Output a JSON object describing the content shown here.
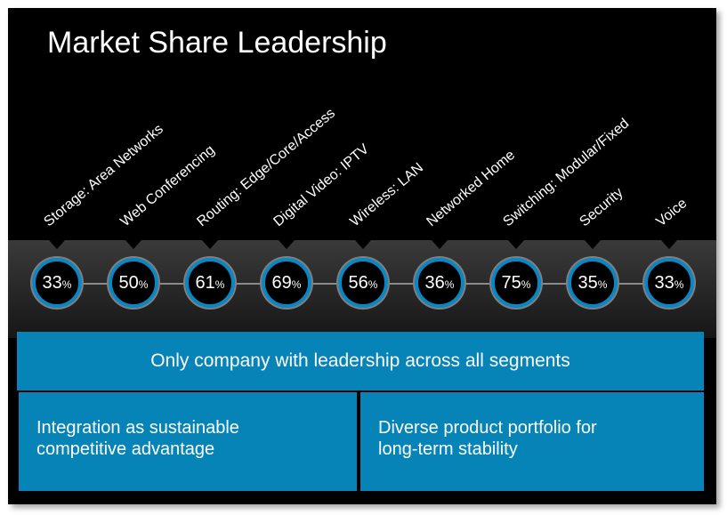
{
  "title": "Market Share Leadership",
  "segments": [
    {
      "label": "Storage: Area Networks",
      "value": "33",
      "unit": "%"
    },
    {
      "label": "Web Conferencing",
      "value": "50",
      "unit": "%"
    },
    {
      "label": "Routing: Edge/Core/Access",
      "value": "61",
      "unit": "%"
    },
    {
      "label": "Digital Video: IPTV",
      "value": "69",
      "unit": "%"
    },
    {
      "label": "Wireless: LAN",
      "value": "56",
      "unit": "%"
    },
    {
      "label": "Networked Home",
      "value": "36",
      "unit": "%"
    },
    {
      "label": "Switching: Modular/Fixed",
      "value": "75",
      "unit": "%"
    },
    {
      "label": "Security",
      "value": "35",
      "unit": "%"
    },
    {
      "label": "Voice",
      "value": "33",
      "unit": "%"
    }
  ],
  "boxes": {
    "top": "Only company with leadership across all segments",
    "left_line1": "Integration as sustainable",
    "left_line2": "competitive advantage",
    "right_line1": "Diverse product portfolio for",
    "right_line2": "long-term stability"
  },
  "colors": {
    "accent_blue": "#0683b7",
    "ring_blue": "#0a86c2",
    "background": "#000000"
  }
}
